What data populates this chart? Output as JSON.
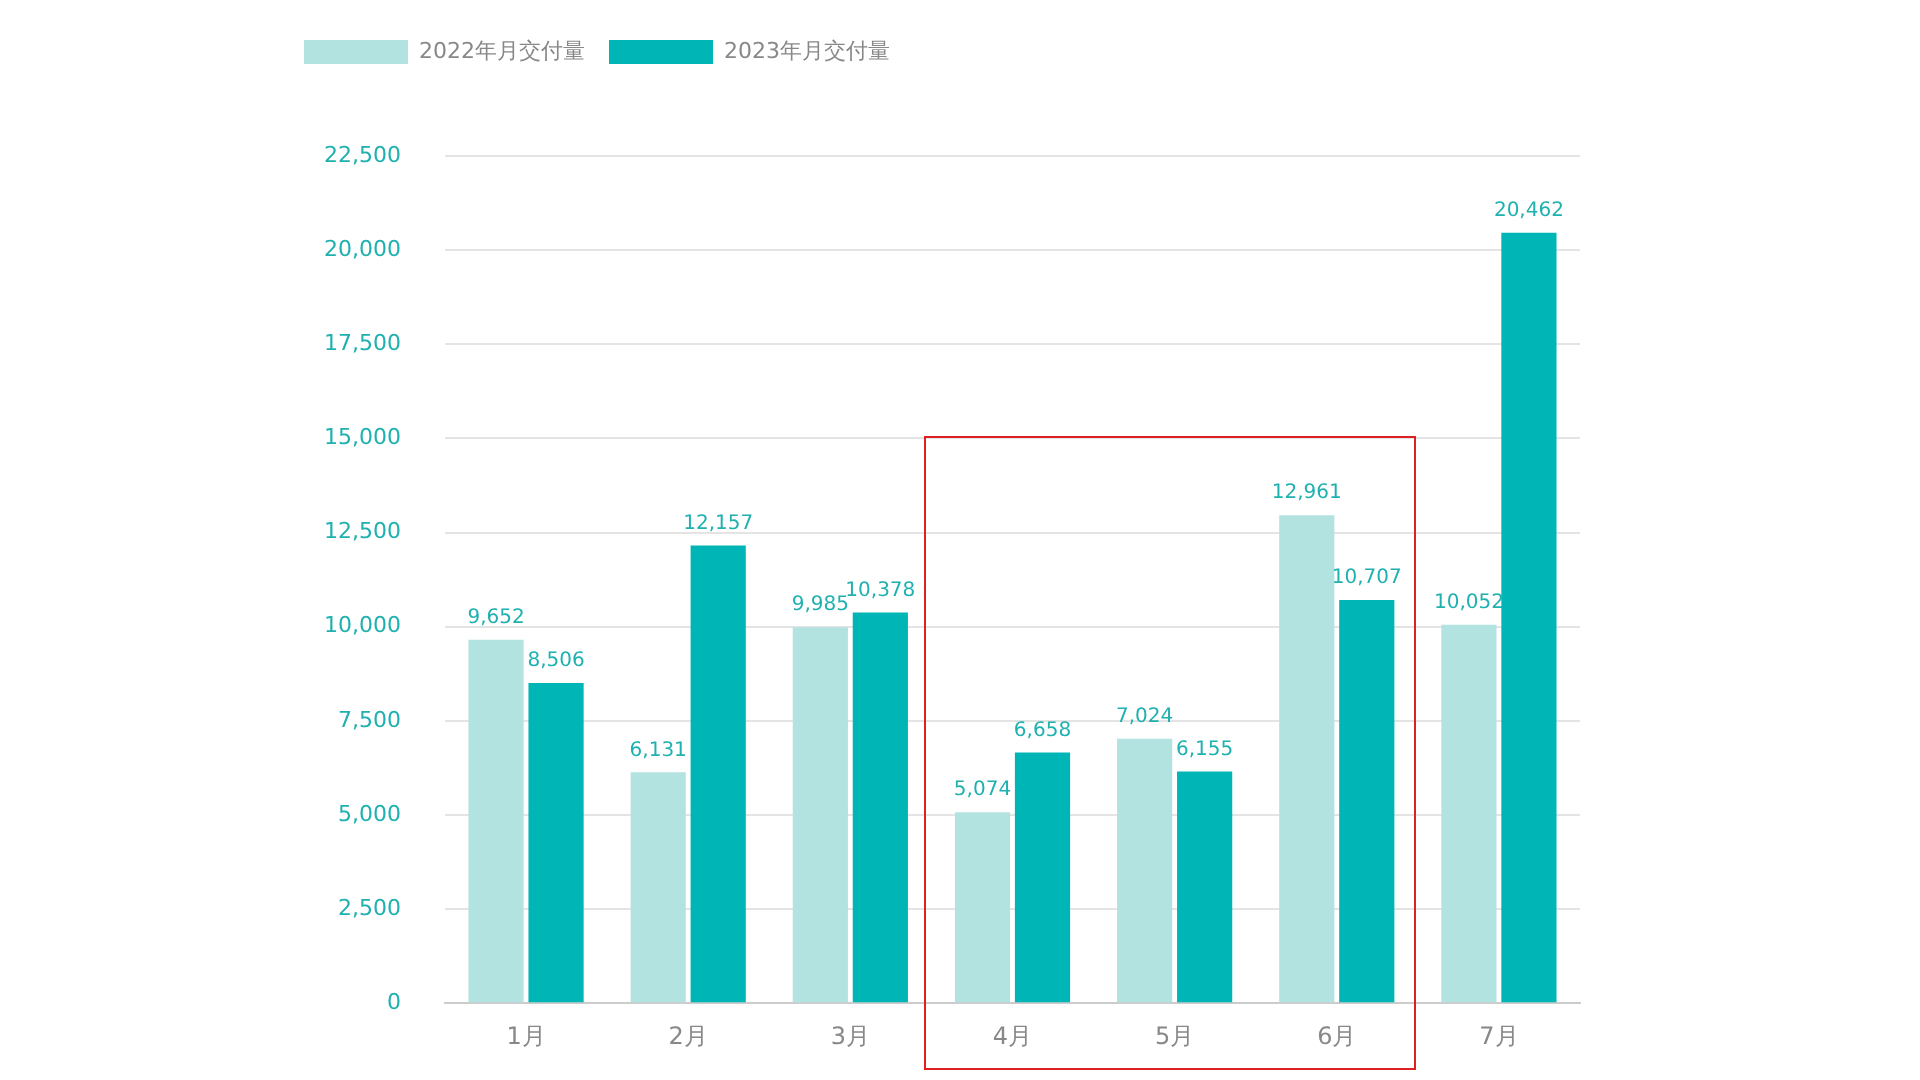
{
  "chart_data": {
    "type": "bar",
    "categories": [
      "1月",
      "2月",
      "3月",
      "4月",
      "5月",
      "6月",
      "7月"
    ],
    "series": [
      {
        "name": "2022年月交付量",
        "color": "#b3e3e1",
        "values": [
          9652,
          6131,
          9985,
          5074,
          7024,
          12961,
          10052
        ],
        "value_labels": [
          "9,652",
          "6,131",
          "9,985",
          "5,074",
          "7,024",
          "12,961",
          "10,052"
        ]
      },
      {
        "name": "2023年月交付量",
        "color": "#00b5b5",
        "values": [
          8506,
          12157,
          10378,
          6658,
          6155,
          10707,
          20462
        ],
        "value_labels": [
          "8,506",
          "12,157",
          "10,378",
          "6,658",
          "6,155",
          "10,707",
          "20,462"
        ]
      }
    ],
    "ylim": [
      0,
      22500
    ],
    "yticks": [
      0,
      {
        "value": 2500,
        "label": "2,500"
      },
      {
        "value": 5000,
        "label": "5,000"
      },
      {
        "value": 7500,
        "label": "7,500"
      },
      {
        "value": 10000,
        "label": "10,000"
      },
      {
        "value": 12500,
        "label": "12,500"
      },
      {
        "value": 15000,
        "label": "15,000"
      },
      {
        "value": 17500,
        "label": "17,500"
      },
      {
        "value": 20000,
        "label": "20,000"
      },
      {
        "value": 22500,
        "label": "22,500"
      }
    ],
    "grid": "y",
    "legend": "top left"
  }
}
